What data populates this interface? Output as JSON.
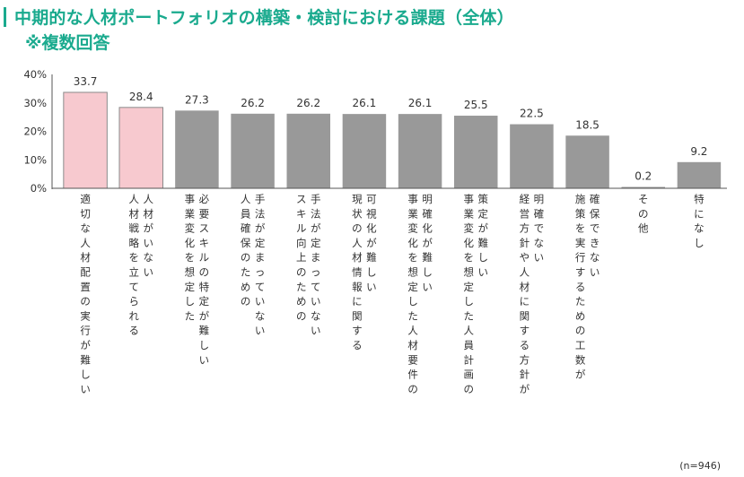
{
  "header": {
    "title": "中期的な人材ポートフォリオの構築・検討における課題（全体）",
    "subtitle": "※複数回答"
  },
  "footnote": "(n=946)",
  "colors": {
    "accent": "#1aaa8e",
    "highlight_bar": "#f7c9cf",
    "highlight_border": "#8a8a8a",
    "default_bar": "#999999"
  },
  "chart_data": {
    "type": "bar",
    "y_ticks": [
      "0%",
      "10%",
      "20%",
      "30%",
      "40%"
    ],
    "ylim": [
      0,
      40
    ],
    "categories": [
      "適切な人材配置の実行が難しい",
      "人材がいない",
      "人材戦略を立てられる",
      "必要スキルの特定が難しい",
      "事業変化を想定した",
      "手法が定まっていない",
      "人員確保のための",
      "手法が定まっていない",
      "スキル向上のための",
      "可視化が難しい",
      "現状の人材情報に関する",
      "明確化が難しい",
      "事業変化を想定した人材要件の",
      "策定が難しい",
      "事業変化を想定した人員計画の",
      "明確でない",
      "経営方針や人材に関する方針が",
      "確保できない",
      "施策を実行するための工数が",
      "その他",
      "特になし"
    ],
    "bars": [
      {
        "value": 33.7,
        "label": "33.7",
        "highlight": true,
        "columns": [
          0
        ]
      },
      {
        "value": 28.4,
        "label": "28.4",
        "highlight": true,
        "columns": [
          1,
          2
        ]
      },
      {
        "value": 27.3,
        "label": "27.3",
        "highlight": false,
        "columns": [
          3,
          4
        ]
      },
      {
        "value": 26.2,
        "label": "26.2",
        "highlight": false,
        "columns": [
          5,
          6
        ]
      },
      {
        "value": 26.2,
        "label": "26.2",
        "highlight": false,
        "columns": [
          7,
          8
        ]
      },
      {
        "value": 26.1,
        "label": "26.1",
        "highlight": false,
        "columns": [
          9,
          10
        ]
      },
      {
        "value": 26.1,
        "label": "26.1",
        "highlight": false,
        "columns": [
          11,
          12
        ]
      },
      {
        "value": 25.5,
        "label": "25.5",
        "highlight": false,
        "columns": [
          13,
          14
        ]
      },
      {
        "value": 22.5,
        "label": "22.5",
        "highlight": false,
        "columns": [
          15,
          16
        ]
      },
      {
        "value": 18.5,
        "label": "18.5",
        "highlight": false,
        "columns": [
          17,
          18
        ]
      },
      {
        "value": 0.2,
        "label": "0.2",
        "highlight": false,
        "columns": [
          19
        ]
      },
      {
        "value": 9.2,
        "label": "9.2",
        "highlight": false,
        "columns": [
          20
        ]
      }
    ]
  }
}
